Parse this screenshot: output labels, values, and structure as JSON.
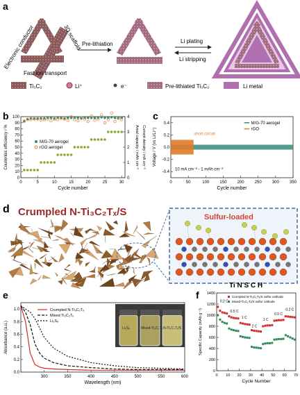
{
  "panel_a": {
    "label": "a",
    "left_annotations": {
      "electronic_conductor": "Electronic conductor",
      "scaffold_3d": "3D scaffold",
      "fast_ion_transport": "Fast ion transport"
    },
    "arrow1": "Pre-lithiation",
    "arrow2_top": "Li plating",
    "arrow2_bottom": "Li stripping",
    "legend": [
      {
        "label": "Ti₃C₂",
        "icon": "ti3c2-sheet-icon"
      },
      {
        "label": "Li⁺",
        "icon": "li-ion-icon"
      },
      {
        "label": "e⁻",
        "icon": "electron-icon"
      },
      {
        "label": "Pre-lithiated  Ti₃C₂",
        "icon": "prelithiated-sheet-icon"
      },
      {
        "label": "Li metal",
        "icon": "li-metal-icon"
      }
    ]
  },
  "panel_b_label": "b",
  "panel_c_label": "c",
  "panel_d": {
    "label": "d",
    "title": "Crumpled N-Ti₃C₂Tₓ/S",
    "callout": "Sulfur-loaded",
    "elements": "Ti N S C H"
  },
  "panel_e_label": "e",
  "panel_f_label": "f",
  "colors": {
    "sheet": "#8a5a5a",
    "li_metal": "#b070b0",
    "teal": "#3a8a7a",
    "orange": "#e07b2a",
    "green": "#2e8b57",
    "red": "#d22b2b",
    "crumple": "#b07a45"
  },
  "chart_data": [
    {
      "type": "scatter",
      "panel": "b",
      "xlabel": "Cycle number",
      "ylabel": "Coulombic efficiency / %",
      "y2label_outer": "Areal capacity / mAh cm⁻²",
      "y2label_inner": "Current density / mA cm⁻²",
      "xlim": [
        0,
        31
      ],
      "ylim": [
        0,
        100
      ],
      "y2lim": [
        0,
        4
      ],
      "xticks": [
        0,
        5,
        10,
        15,
        20,
        25,
        30
      ],
      "yticks": [
        0,
        10,
        20,
        30,
        40,
        50,
        60,
        70,
        80,
        90,
        100
      ],
      "y2ticks": [
        0,
        1,
        2,
        3,
        4
      ],
      "series": [
        {
          "name": "M/G-70 aerogel",
          "x": [
            1,
            2,
            3,
            4,
            5,
            6,
            7,
            8,
            9,
            10,
            11,
            12,
            13,
            14,
            15,
            16,
            17,
            18,
            19,
            20,
            21,
            22,
            23,
            24,
            25,
            26,
            27,
            28,
            29,
            30
          ],
          "values": [
            93,
            96,
            97,
            97,
            97,
            97,
            97,
            98,
            98,
            97,
            98,
            98,
            97,
            98,
            98,
            98,
            98,
            97,
            98,
            98,
            98,
            98,
            98,
            99,
            98,
            98,
            99,
            98,
            98,
            98
          ]
        },
        {
          "name": "rGO aerogel",
          "x": [
            1,
            2,
            3,
            4,
            5,
            6,
            7,
            8,
            9,
            10,
            11,
            12,
            13,
            14,
            15,
            16,
            17,
            18,
            19,
            20,
            21,
            22,
            23,
            24,
            25,
            26,
            27,
            28,
            29,
            30
          ],
          "values": [
            92,
            95,
            95,
            96,
            96,
            94,
            95,
            96,
            93,
            96,
            95,
            97,
            96,
            94,
            100,
            95,
            93,
            98,
            96,
            92,
            101,
            94,
            96,
            103,
            90,
            95,
            106,
            92,
            97,
            95
          ]
        },
        {
          "name": "Current density",
          "x": [
            1,
            2,
            3,
            4,
            5,
            6,
            7,
            8,
            9,
            10,
            11,
            12,
            13,
            14,
            15,
            16,
            17,
            18,
            19,
            20,
            21,
            22,
            23,
            24,
            25,
            26,
            27,
            28,
            29,
            30
          ],
          "values": [
            0.5,
            0.5,
            0.5,
            0.5,
            0.5,
            1,
            1,
            1,
            1,
            1,
            1.5,
            1.5,
            1.5,
            1.5,
            1.5,
            2,
            2,
            2,
            2,
            2,
            2.5,
            2.5,
            2.5,
            2.5,
            2.5,
            3,
            3,
            3,
            3,
            3
          ]
        }
      ]
    },
    {
      "type": "line",
      "panel": "c",
      "xlabel": "Cycle number",
      "ylabel": "Voltage / V (vs Li/Li⁺)",
      "xlim": [
        0,
        350
      ],
      "ylim": [
        -0.5,
        0.5
      ],
      "xticks": [
        0,
        50,
        100,
        150,
        200,
        250,
        300,
        350
      ],
      "yticks": [
        -0.4,
        -0.2,
        0.0,
        0.2,
        0.4
      ],
      "annotations": [
        "short circuit",
        "10 mA cm⁻² - 1 mAh cm⁻²"
      ],
      "series": [
        {
          "name": "M/G-70 aerogel",
          "x_range": [
            0,
            350
          ],
          "amplitude": 0.04
        },
        {
          "name": "rGO",
          "x_range": [
            0,
            65
          ],
          "amplitude": 0.12
        }
      ]
    },
    {
      "type": "line",
      "panel": "e",
      "xlabel": "Wavelength (nm)",
      "ylabel": "Absorbance (a.u.)",
      "xlim": [
        250,
        600
      ],
      "ylim": [
        0,
        1.1
      ],
      "xticks": [
        300,
        350,
        400,
        450,
        500,
        550,
        600
      ],
      "yticks": [
        0.0,
        0.2,
        0.4,
        0.6,
        0.8,
        1.0
      ],
      "vial_labels": [
        "Li₂S₆",
        "Mixed-Ti₃C₂Tₓ",
        "N-Ti₃C₂Tₓ/S"
      ],
      "series": [
        {
          "name": "Crumpled  N-Ti₃C₂Tₓ",
          "x": [
            250,
            260,
            270,
            280,
            290,
            300,
            320,
            350,
            400,
            450,
            500,
            550,
            600
          ],
          "values": [
            1.05,
            0.8,
            0.3,
            0.12,
            0.08,
            0.06,
            0.05,
            0.04,
            0.03,
            0.03,
            0.03,
            0.03,
            0.03
          ]
        },
        {
          "name": "Mixed Ti₃C₂Tₓ",
          "x": [
            250,
            260,
            270,
            280,
            290,
            300,
            320,
            350,
            400,
            450,
            500,
            550,
            600
          ],
          "values": [
            1.05,
            0.95,
            0.75,
            0.45,
            0.3,
            0.22,
            0.15,
            0.1,
            0.07,
            0.05,
            0.04,
            0.04,
            0.04
          ]
        },
        {
          "name": "Li₂S₆",
          "x": [
            250,
            260,
            270,
            280,
            290,
            300,
            320,
            350,
            400,
            450,
            500,
            550,
            600
          ],
          "values": [
            1.05,
            1.0,
            0.95,
            0.85,
            0.7,
            0.55,
            0.38,
            0.25,
            0.15,
            0.1,
            0.07,
            0.06,
            0.05
          ]
        }
      ]
    },
    {
      "type": "line",
      "panel": "f",
      "xlabel": "Cycle Number",
      "ylabel": "Specific Capacity (mAh g⁻¹)",
      "xlim": [
        0,
        70
      ],
      "ylim": [
        0,
        1400
      ],
      "xticks": [
        0,
        10,
        20,
        30,
        40,
        50,
        60,
        70
      ],
      "yticks": [
        0,
        200,
        400,
        600,
        800,
        1000,
        1200,
        1400
      ],
      "rate_labels": [
        "0.2 C",
        "0.5 C",
        "1 C",
        "2 C",
        "1 C",
        "0.5 C",
        "0.2 C"
      ],
      "series": [
        {
          "name": "Crumpled  N-Ti₃C₂Tₓ/S sulfur cathode",
          "x": [
            1,
            3,
            5,
            7,
            9,
            11,
            13,
            15,
            17,
            19,
            21,
            23,
            25,
            27,
            29,
            31,
            33,
            35,
            37,
            39,
            41,
            43,
            45,
            47,
            49,
            51,
            53,
            55,
            57,
            59,
            61,
            63,
            65,
            67,
            69
          ],
          "values": [
            1150,
            1080,
            1050,
            1040,
            1030,
            980,
            960,
            950,
            945,
            940,
            860,
            850,
            840,
            835,
            830,
            730,
            720,
            715,
            710,
            705,
            800,
            810,
            815,
            815,
            820,
            900,
            905,
            910,
            910,
            915,
            980,
            975,
            970,
            965,
            960
          ]
        },
        {
          "name": "Mixed-Ti₃C₂Tₓ/S sulfur cathode",
          "x": [
            1,
            3,
            5,
            7,
            9,
            11,
            13,
            15,
            17,
            19,
            21,
            23,
            25,
            27,
            29,
            31,
            33,
            35,
            37,
            39,
            41,
            43,
            45,
            47,
            49,
            51,
            53,
            55,
            57,
            59,
            61,
            63,
            65,
            67,
            69
          ],
          "values": [
            1000,
            920,
            880,
            860,
            850,
            760,
            740,
            730,
            720,
            715,
            620,
            610,
            600,
            595,
            590,
            430,
            420,
            415,
            410,
            405,
            480,
            490,
            495,
            495,
            500,
            560,
            565,
            570,
            570,
            575,
            640,
            620,
            600,
            580,
            560
          ]
        }
      ]
    }
  ]
}
